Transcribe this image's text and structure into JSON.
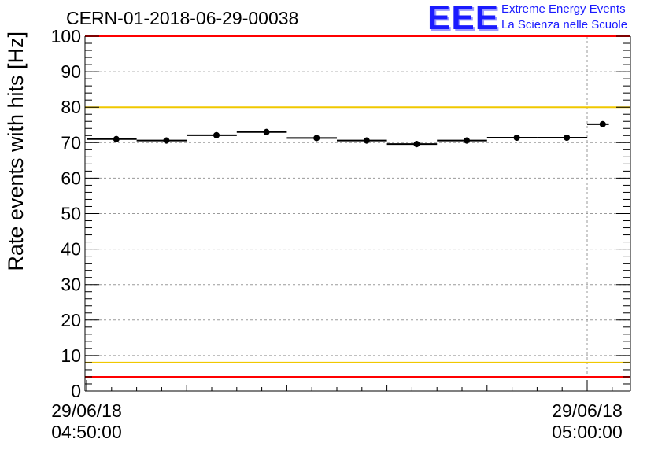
{
  "header": {
    "title": "CERN-01-2018-06-29-00038",
    "logo_text": "EEE",
    "brand_line1": "Extreme Energy Events",
    "brand_line2": "La Scienza nelle Scuole"
  },
  "colors": {
    "logo": "#1a1aff",
    "red_line": "#ff0000",
    "yellow_line": "#f0c800",
    "grid": "#9a9a9a",
    "data": "#000000"
  },
  "chart_data": {
    "type": "scatter",
    "ylabel": "Rate events with hits [Hz]",
    "xlabel": "",
    "ylim": [
      0,
      100
    ],
    "yticks": [
      0,
      10,
      20,
      30,
      40,
      50,
      60,
      70,
      80,
      90,
      100
    ],
    "x_time_start": "29/06/18 04:50:00",
    "x_time_end": "29/06/18 05:00:00",
    "xtick_labels": [
      {
        "date": "29/06/18",
        "time": "04:50:00"
      },
      {
        "date": "29/06/18",
        "time": "05:00:00"
      }
    ],
    "grid": true,
    "reference_lines": [
      {
        "value": 100,
        "color": "red"
      },
      {
        "value": 80,
        "color": "yellow"
      },
      {
        "value": 8,
        "color": "yellow"
      },
      {
        "value": 4,
        "color": "red"
      }
    ],
    "series": [
      {
        "bins": [
          {
            "start": "04:50:00",
            "end": "04:51:00",
            "value": 71.0
          },
          {
            "start": "04:51:00",
            "end": "04:52:00",
            "value": 70.6
          },
          {
            "start": "04:52:00",
            "end": "04:53:00",
            "value": 72.1
          },
          {
            "start": "04:53:00",
            "end": "04:54:00",
            "value": 73.0
          },
          {
            "start": "04:54:00",
            "end": "04:55:00",
            "value": 71.3
          },
          {
            "start": "04:55:00",
            "end": "04:56:00",
            "value": 70.6
          },
          {
            "start": "04:56:00",
            "end": "04:57:00",
            "value": 69.6
          },
          {
            "start": "04:57:00",
            "end": "04:58:00",
            "value": 70.6
          },
          {
            "start": "04:58:00",
            "end": "04:59:00",
            "value": 71.4
          },
          {
            "start": "04:59:00",
            "end": "05:00:00",
            "value": 71.4
          },
          {
            "start": "05:00:00",
            "end": "05:00:26",
            "value": 75.2
          }
        ]
      }
    ]
  }
}
